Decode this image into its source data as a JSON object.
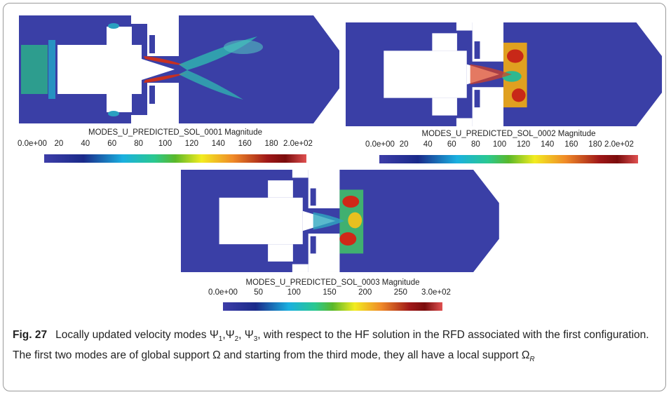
{
  "panels": [
    {
      "colorbar": {
        "title": "MODES_U_PREDICTED_SOL_0001 Magnitude",
        "ticks": [
          "0.0e+00",
          "20",
          "40",
          "60",
          "80",
          "100",
          "120",
          "140",
          "160",
          "180",
          "2.0e+02"
        ]
      }
    },
    {
      "colorbar": {
        "title": "MODES_U_PREDICTED_SOL_0002 Magnitude",
        "ticks": [
          "0.0e+00",
          "20",
          "40",
          "60",
          "80",
          "100",
          "120",
          "140",
          "160",
          "180",
          "2.0e+02"
        ]
      }
    },
    {
      "colorbar": {
        "title": "MODES_U_PREDICTED_SOL_0003 Magnitude",
        "ticks": [
          "0.0e+00",
          "50",
          "100",
          "150",
          "200",
          "250",
          "3.0e+02"
        ]
      }
    }
  ],
  "caption": {
    "label": "Fig. 27",
    "segments": [
      {
        "text": "Locally updated velocity modes Ψ"
      },
      {
        "sub": "1"
      },
      {
        "text": ",Ψ"
      },
      {
        "sub": "2"
      },
      {
        "text": ", Ψ"
      },
      {
        "sub": "3"
      },
      {
        "text": ", with respect to the HF solution in the RFD associated with the first configuration. The first two modes are of global support Ω and starting from the third mode, they all have a local support Ω"
      },
      {
        "sub": "R"
      }
    ]
  }
}
